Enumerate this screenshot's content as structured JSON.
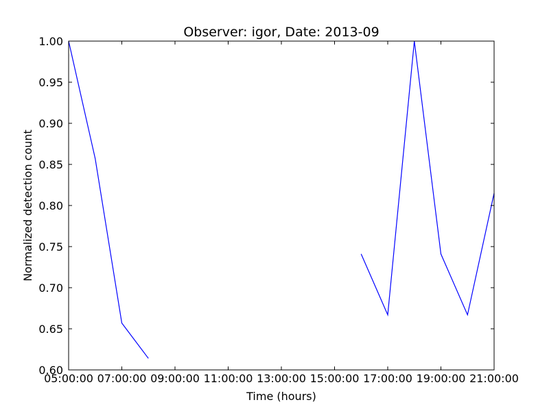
{
  "chart_data": {
    "type": "line",
    "title": "Observer: igor, Date: 2013-09",
    "xlabel": "Time (hours)",
    "ylabel": "Normalized detection count",
    "xlim": [
      "05:00:00",
      "21:00:00"
    ],
    "ylim": [
      0.6,
      1.0
    ],
    "x_ticks": [
      "05:00:00",
      "07:00:00",
      "09:00:00",
      "11:00:00",
      "13:00:00",
      "15:00:00",
      "17:00:00",
      "19:00:00",
      "21:00:00"
    ],
    "y_ticks": [
      "0.60",
      "0.65",
      "0.70",
      "0.75",
      "0.80",
      "0.85",
      "0.90",
      "0.95",
      "1.00"
    ],
    "grid": false,
    "line_color": "#0000ff",
    "series": [
      {
        "segments": [
          {
            "x": [
              "05:00:00",
              "06:00:00",
              "07:00:00",
              "08:00:00"
            ],
            "y": [
              1.0,
              0.857,
              0.657,
              0.614
            ]
          },
          {
            "x": [
              "16:00:00",
              "17:00:00",
              "18:00:00",
              "19:00:00",
              "20:00:00",
              "21:00:00"
            ],
            "y": [
              0.741,
              0.667,
              1.0,
              0.741,
              0.667,
              0.815
            ]
          }
        ]
      }
    ]
  }
}
